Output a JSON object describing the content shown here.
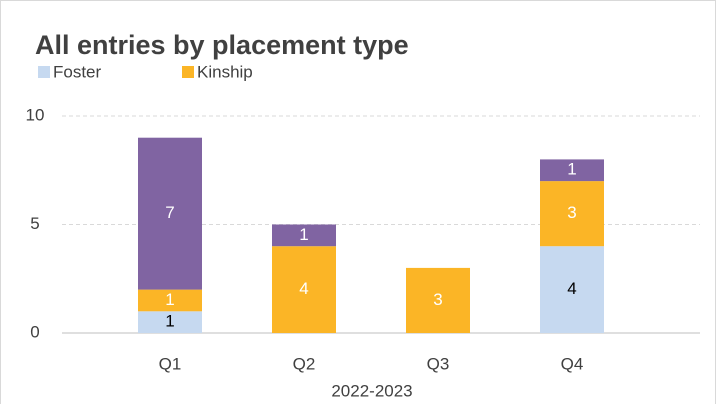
{
  "chart_data": {
    "type": "stacked_bar",
    "title": "All entries by placement type",
    "x_label": "2022-2023",
    "categories": [
      "Q1",
      "Q2",
      "Q3",
      "Q4"
    ],
    "series": [
      {
        "name": "Foster",
        "color": "#c6d9f0",
        "values": [
          1,
          0,
          0,
          4
        ]
      },
      {
        "name": "Kinship",
        "color": "#fbb526",
        "values": [
          1,
          4,
          3,
          3
        ]
      },
      {
        "color": "#8064a2",
        "values": [
          7,
          1,
          0,
          1
        ]
      }
    ],
    "ylim": [
      0,
      10
    ],
    "yticks": [
      0,
      5,
      10
    ],
    "grid": true
  }
}
